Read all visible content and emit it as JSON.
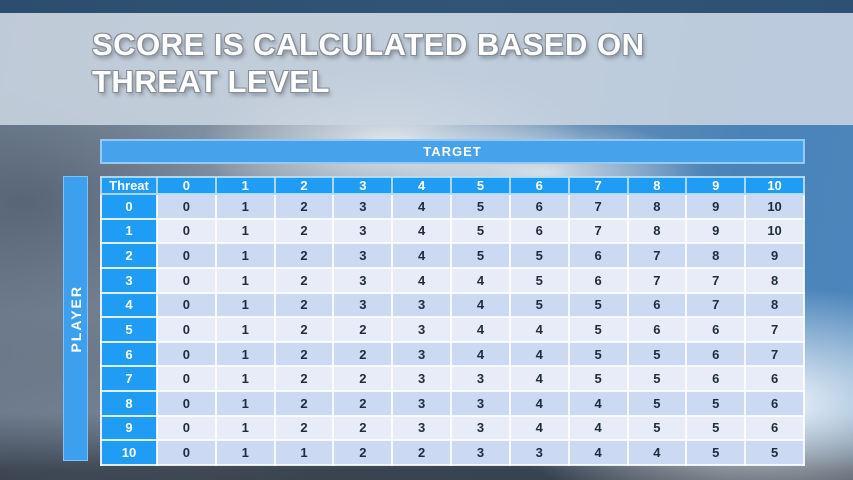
{
  "slide": {
    "title_line1": "SCORE IS CALCULATED BASED ON",
    "title_line2": "THREAT LEVEL"
  },
  "table": {
    "target_label": "TARGET",
    "player_label": "PLAYER",
    "corner_label": "Threat",
    "column_headers": [
      "0",
      "1",
      "2",
      "3",
      "4",
      "5",
      "6",
      "7",
      "8",
      "9",
      "10"
    ],
    "rows": [
      {
        "label": "0",
        "values": [
          0,
          1,
          2,
          3,
          4,
          5,
          6,
          7,
          8,
          9,
          10
        ]
      },
      {
        "label": "1",
        "values": [
          0,
          1,
          2,
          3,
          4,
          5,
          6,
          7,
          8,
          9,
          10
        ]
      },
      {
        "label": "2",
        "values": [
          0,
          1,
          2,
          3,
          4,
          5,
          5,
          6,
          7,
          8,
          9
        ]
      },
      {
        "label": "3",
        "values": [
          0,
          1,
          2,
          3,
          4,
          4,
          5,
          6,
          7,
          7,
          8
        ]
      },
      {
        "label": "4",
        "values": [
          0,
          1,
          2,
          3,
          3,
          4,
          5,
          5,
          6,
          7,
          8
        ]
      },
      {
        "label": "5",
        "values": [
          0,
          1,
          2,
          2,
          3,
          4,
          4,
          5,
          6,
          6,
          7
        ]
      },
      {
        "label": "6",
        "values": [
          0,
          1,
          2,
          2,
          3,
          4,
          4,
          5,
          5,
          6,
          7
        ]
      },
      {
        "label": "7",
        "values": [
          0,
          1,
          2,
          2,
          3,
          3,
          4,
          5,
          5,
          6,
          6
        ]
      },
      {
        "label": "8",
        "values": [
          0,
          1,
          2,
          2,
          3,
          3,
          4,
          4,
          5,
          5,
          6
        ]
      },
      {
        "label": "9",
        "values": [
          0,
          1,
          2,
          2,
          3,
          3,
          4,
          4,
          5,
          5,
          6
        ]
      },
      {
        "label": "10",
        "values": [
          0,
          1,
          1,
          2,
          2,
          3,
          3,
          4,
          4,
          5,
          5
        ]
      }
    ]
  },
  "colors": {
    "top_bar": "#2F5173",
    "title_band": "#CBD5E1",
    "header_blue": "#1F9CF4",
    "target_band_blue": "#46A2EA",
    "player_band_blue": "#3DA0EE",
    "row_even": "#CBDAF2",
    "row_odd": "#E8ECF8",
    "cell_text": "#1E2C3C"
  }
}
